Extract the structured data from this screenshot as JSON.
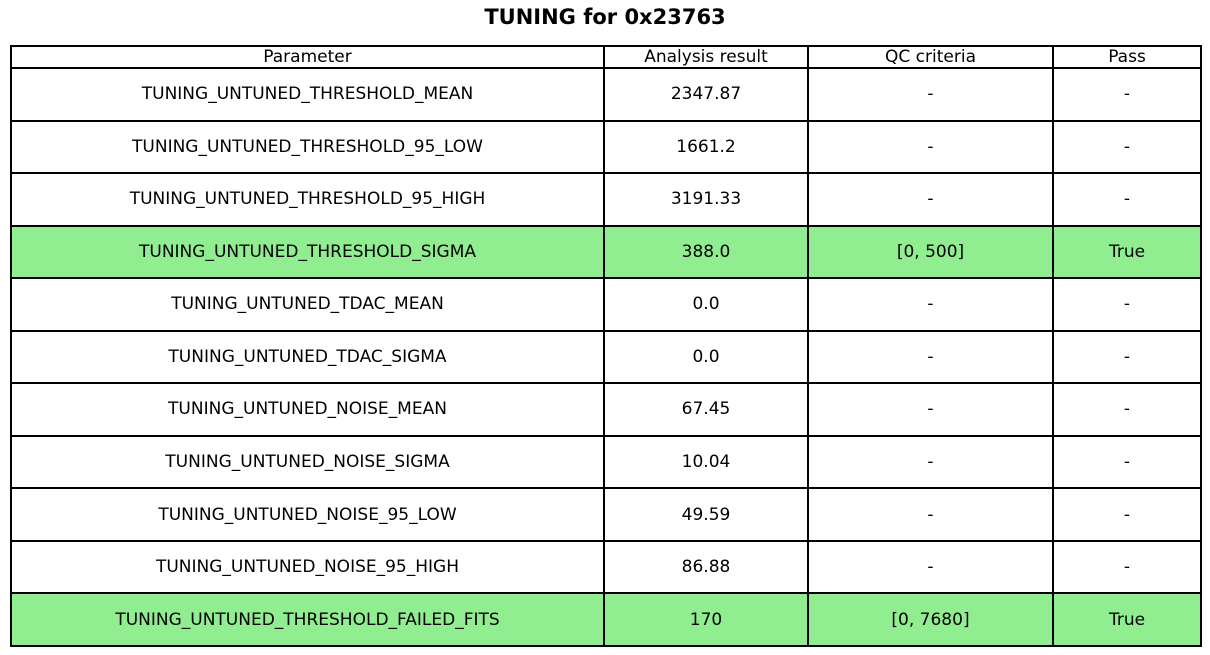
{
  "title": "TUNING for 0x23763",
  "colors": {
    "highlight_pass": "#90EE90",
    "border": "#000000",
    "background": "#FFFFFF",
    "text": "#000000"
  },
  "chart_data": {
    "type": "table",
    "title": "TUNING for 0x23763",
    "columns": [
      "Parameter",
      "Analysis result",
      "QC criteria",
      "Pass"
    ],
    "rows": [
      [
        "TUNING_UNTUNED_THRESHOLD_MEAN",
        "2347.87",
        "-",
        "-"
      ],
      [
        "TUNING_UNTUNED_THRESHOLD_95_LOW",
        "1661.2",
        "-",
        "-"
      ],
      [
        "TUNING_UNTUNED_THRESHOLD_95_HIGH",
        "3191.33",
        "-",
        "-"
      ],
      [
        "TUNING_UNTUNED_THRESHOLD_SIGMA",
        "388.0",
        "[0, 500]",
        "True"
      ],
      [
        "TUNING_UNTUNED_TDAC_MEAN",
        "0.0",
        "-",
        "-"
      ],
      [
        "TUNING_UNTUNED_TDAC_SIGMA",
        "0.0",
        "-",
        "-"
      ],
      [
        "TUNING_UNTUNED_NOISE_MEAN",
        "67.45",
        "-",
        "-"
      ],
      [
        "TUNING_UNTUNED_NOISE_SIGMA",
        "10.04",
        "-",
        "-"
      ],
      [
        "TUNING_UNTUNED_NOISE_95_LOW",
        "49.59",
        "-",
        "-"
      ],
      [
        "TUNING_UNTUNED_NOISE_95_HIGH",
        "86.88",
        "-",
        "-"
      ],
      [
        "TUNING_UNTUNED_THRESHOLD_FAILED_FITS",
        "170",
        "[0, 7680]",
        "True"
      ]
    ],
    "highlighted_row_indices": [
      3,
      10
    ],
    "highlighted_rows": [
      "TUNING_UNTUNED_THRESHOLD_SIGMA",
      "TUNING_UNTUNED_THRESHOLD_FAILED_FITS"
    ],
    "layout": {
      "grid": true,
      "cell_text_align": "center",
      "title_position": "top-center"
    }
  }
}
